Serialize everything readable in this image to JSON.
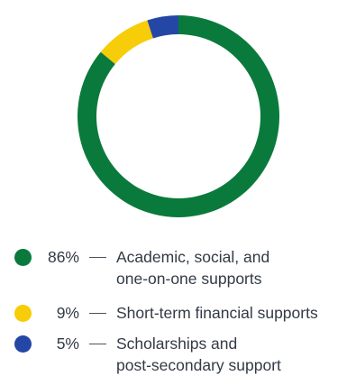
{
  "chart_data": {
    "type": "pie",
    "title": "",
    "legend_position": "bottom",
    "series": [
      {
        "name": "",
        "values": [
          86,
          9,
          5
        ]
      }
    ],
    "categories": [
      "Academic, social, and one-on-one supports",
      "Short-term financial supports",
      "Scholarships and post-secondary support"
    ],
    "slices": [
      {
        "value": 86,
        "percent_label": "86%",
        "label_lines": [
          "Academic, social, and",
          "one-on-one supports"
        ],
        "color": "#0a7a3c"
      },
      {
        "value": 9,
        "percent_label": "9%",
        "label_lines": [
          "Short-term financial supports"
        ],
        "color": "#f7cc08"
      },
      {
        "value": 5,
        "percent_label": "5%",
        "label_lines": [
          "Scholarships and",
          "post-secondary support"
        ],
        "color": "#2447a6"
      }
    ],
    "dash": "—"
  }
}
